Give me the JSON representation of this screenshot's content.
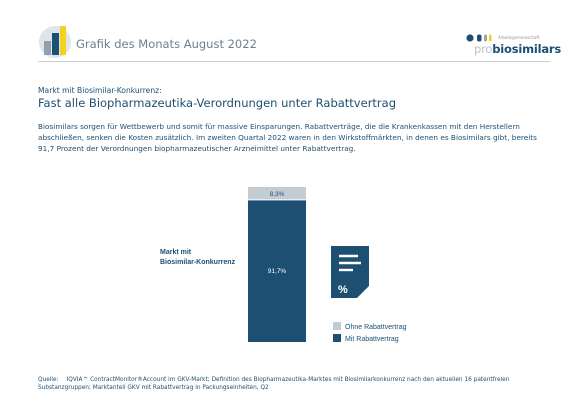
{
  "header": {
    "title": "Grafik des Monats August 2022",
    "logo_sub": "Arbeitsgemeinschaft",
    "logo_pro": "pro",
    "logo_biosimilars": "biosimilars"
  },
  "subtitle": "Markt mit Biosimilar-Konkurrenz:",
  "headline": "Fast alle Biopharmazeutika-Verordnungen unter Rabattvertrag",
  "intro": "Biosimilars sorgen für Wettbewerb und somit für massive Einsparungen. Rabattverträge, die die Krankenkassen mit den Herstellern abschließen, senken die Kosten zusätzlich. Im zweiten Quartal 2022 waren in den Wirkstoffmärkten, in denen es Biosimilars gibt, bereits 91,7 Prozent der Verordnungen biopharmazeutischer Arzneimittel unter Rabattvertrag.",
  "chart_data": {
    "type": "bar",
    "stacked": true,
    "categories": [
      "Markt mit Biosimilar-Konkurrenz"
    ],
    "series": [
      {
        "name": "Mit Rabattvertrag",
        "values": [
          91.7
        ],
        "label": "91,7%",
        "color": "#1d4f73"
      },
      {
        "name": "Ohne Rabattvertrag",
        "values": [
          8.3
        ],
        "label": "8,3%",
        "color": "#c3ccd3"
      }
    ],
    "ylim": [
      0,
      100
    ],
    "category_label_lines": [
      "Markt mit",
      "Biosimilar-Konkurrenz"
    ],
    "legend_position": "bottom-right",
    "icon": "document-percent-icon"
  },
  "footnote": {
    "label": "Quelle:",
    "text": "IQVIA™ ContractMonitor®Account im GKV-Markt; Definition des Biopharmazeutika-Marktes mit Biosimilarkonkurrenz nach den aktuellen 16 patentfreien Substanzgruppen; Marktanteil GKV mit Rabattvertrag in Packungseinheiten, Q2"
  },
  "colors": {
    "brand": "#1d4f73",
    "light": "#c3ccd3",
    "yellow": "#f2d21a"
  }
}
